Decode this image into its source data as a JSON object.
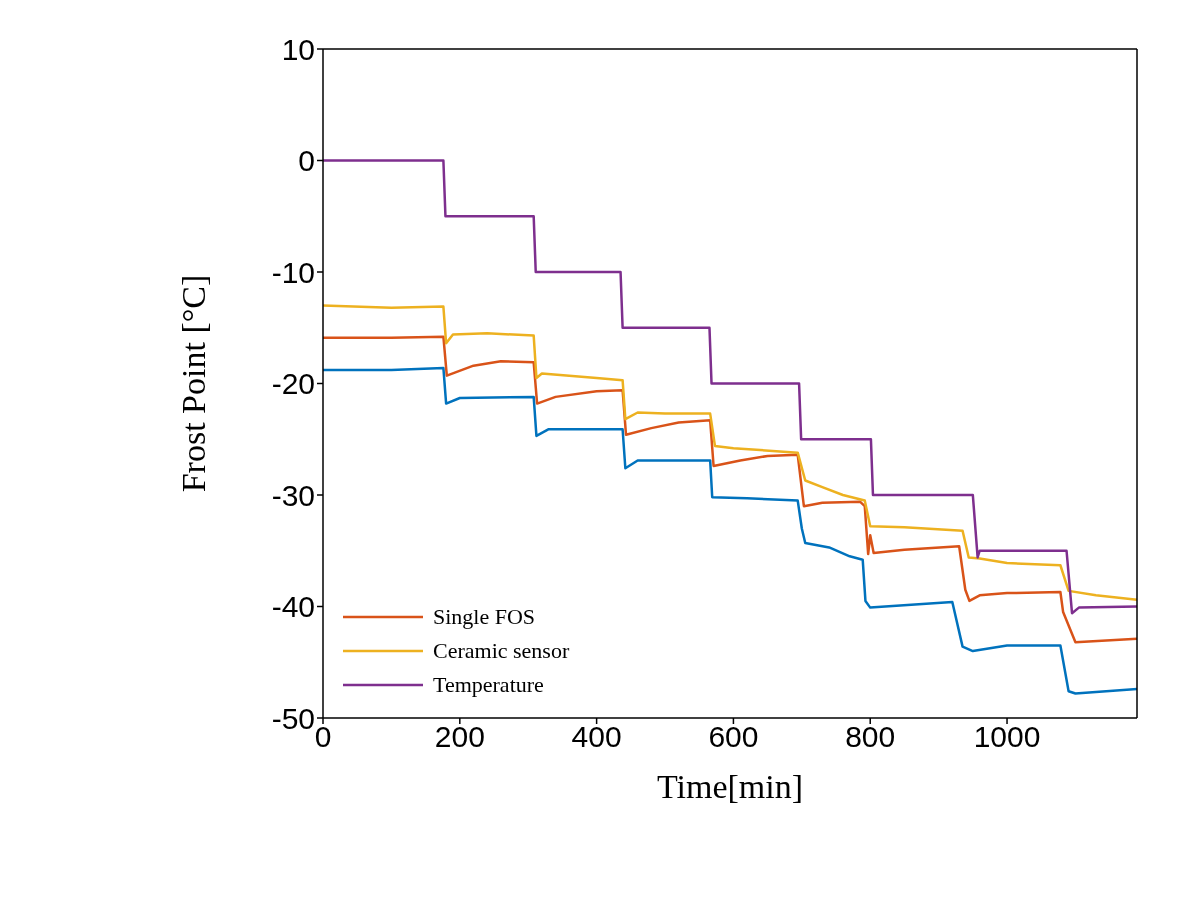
{
  "chart_data": {
    "type": "line",
    "xlabel": "Time[min]",
    "ylabel": "Frost Point [°C]",
    "xlim": [
      0,
      1190
    ],
    "xticks": [
      0,
      200,
      400,
      600,
      800,
      1000
    ],
    "ylim": [
      -50,
      10
    ],
    "yticks": [
      10,
      0,
      -10,
      -20,
      -30,
      -40,
      -50
    ],
    "grid": false,
    "legend": "bottom left",
    "marker": "none",
    "line_style": "solid",
    "series": [
      {
        "color": "#0072bd",
        "x": [
          0,
          100,
          176,
          180,
          200,
          308,
          312,
          330,
          400,
          438,
          442,
          460,
          566,
          569,
          620,
          694,
          700,
          705,
          740,
          770,
          789,
          793,
          800,
          920,
          935,
          950,
          1000,
          1078,
          1090,
          1100,
          1190
        ],
        "values": [
          -18.8,
          -18.8,
          -18.6,
          -21.8,
          -21.3,
          -21.2,
          -24.7,
          -24.1,
          -24.1,
          -24.1,
          -27.6,
          -26.9,
          -26.9,
          -30.2,
          -30.3,
          -30.5,
          -33,
          -34.3,
          -34.7,
          -35.5,
          -35.8,
          -39.5,
          -40.1,
          -39.6,
          -43.6,
          -44,
          -43.5,
          -43.5,
          -47.6,
          -47.8,
          -47.4
        ]
      },
      {
        "name": "Single FOS",
        "color": "#d95319",
        "x": [
          0,
          100,
          176,
          181,
          220,
          260,
          308,
          313,
          340,
          400,
          438,
          443,
          480,
          520,
          566,
          571,
          610,
          650,
          694,
          703,
          730,
          785,
          792,
          797,
          800,
          805,
          850,
          930,
          939,
          945,
          960,
          1000,
          1078,
          1082,
          1100,
          1190
        ],
        "values": [
          -15.9,
          -15.9,
          -15.8,
          -19.3,
          -18.4,
          -18,
          -18.1,
          -21.8,
          -21.2,
          -20.7,
          -20.6,
          -24.6,
          -24,
          -23.5,
          -23.3,
          -27.4,
          -26.9,
          -26.5,
          -26.4,
          -31,
          -30.7,
          -30.6,
          -31,
          -35.3,
          -33.6,
          -35.2,
          -34.9,
          -34.6,
          -38.5,
          -39.5,
          -39,
          -38.8,
          -38.7,
          -40.5,
          -43.2,
          -42.9
        ]
      },
      {
        "name": "Ceramic sensor",
        "color": "#edb120",
        "x": [
          0,
          100,
          176,
          180,
          190,
          240,
          308,
          312,
          320,
          400,
          438,
          442,
          460,
          500,
          566,
          573,
          600,
          694,
          705,
          730,
          760,
          792,
          800,
          850,
          935,
          944,
          960,
          1000,
          1078,
          1090,
          1130,
          1190
        ],
        "values": [
          -13,
          -13.2,
          -13.1,
          -16.4,
          -15.6,
          -15.5,
          -15.7,
          -19.5,
          -19.1,
          -19.5,
          -19.7,
          -23.2,
          -22.6,
          -22.7,
          -22.7,
          -25.6,
          -25.8,
          -26.2,
          -28.7,
          -29.3,
          -30,
          -30.5,
          -32.8,
          -32.9,
          -33.2,
          -35.6,
          -35.7,
          -36.1,
          -36.3,
          -38.6,
          -39,
          -39.4
        ]
      },
      {
        "name": "Temperature",
        "color": "#7e2f8e",
        "x": [
          0,
          176,
          179,
          308,
          311,
          435,
          438,
          565,
          568,
          696,
          699,
          801,
          804,
          950,
          957,
          960,
          1087,
          1095,
          1105,
          1190
        ],
        "values": [
          0,
          0,
          -5,
          -5,
          -10,
          -10,
          -15,
          -15,
          -20,
          -20,
          -25,
          -25,
          -30,
          -30,
          -35.6,
          -35,
          -35,
          -40.6,
          -40.1,
          -40
        ]
      }
    ]
  }
}
